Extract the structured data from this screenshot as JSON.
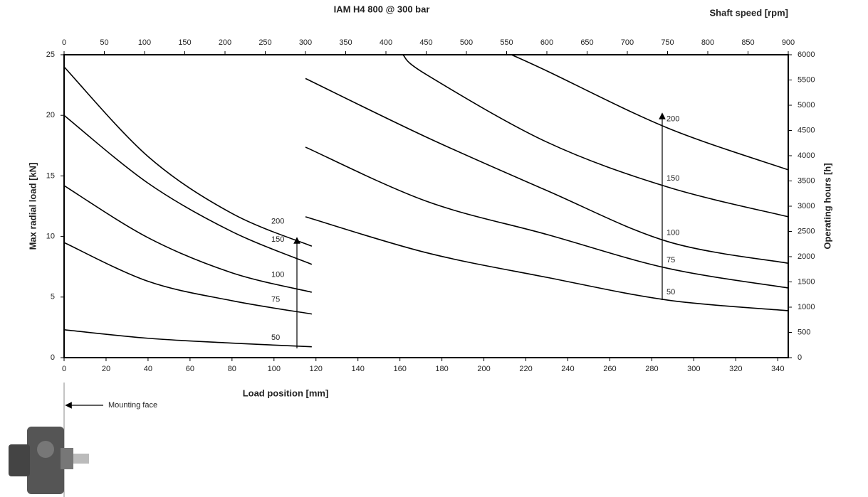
{
  "chart_data": [
    {
      "type": "line",
      "title": "IAM H4 800 @ 300 bar",
      "xlabel": "Load position [mm]",
      "ylabel": "Max radial load [kN]",
      "xlim": [
        0,
        345
      ],
      "xticks": [
        0,
        20,
        40,
        60,
        80,
        100,
        120,
        140,
        160,
        180,
        200,
        220,
        240,
        260,
        280,
        300,
        320,
        340
      ],
      "ylim": [
        0,
        25
      ],
      "yticks": [
        0,
        5,
        10,
        15,
        20,
        25
      ],
      "annotation": "Mounting face",
      "series": [
        {
          "name": "200",
          "color": "#000000",
          "x": [
            0,
            40,
            80,
            118
          ],
          "values": [
            24,
            16.6,
            11.9,
            9.2
          ]
        },
        {
          "name": "150",
          "color": "#000000",
          "x": [
            0,
            40,
            80,
            118
          ],
          "values": [
            20,
            14.4,
            10.4,
            7.7
          ]
        },
        {
          "name": "100",
          "color": "#000000",
          "x": [
            0,
            40,
            80,
            118
          ],
          "values": [
            14.2,
            9.9,
            7.0,
            5.4
          ]
        },
        {
          "name": "75",
          "color": "#000000",
          "x": [
            0,
            40,
            80,
            118
          ],
          "values": [
            9.5,
            6.3,
            4.7,
            3.6
          ]
        },
        {
          "name": "50",
          "color": "#000000",
          "x": [
            0,
            40,
            80,
            118
          ],
          "values": [
            2.3,
            1.6,
            1.2,
            0.9
          ]
        }
      ]
    },
    {
      "type": "line",
      "xlabel": "Shaft speed [rpm]",
      "ylabel": "Operating hours [h]",
      "xlim": [
        0,
        900
      ],
      "xticks": [
        0,
        50,
        100,
        150,
        200,
        250,
        300,
        350,
        400,
        450,
        500,
        550,
        600,
        650,
        700,
        750,
        800,
        850,
        900
      ],
      "ylim": [
        0,
        6000
      ],
      "yticks": [
        0,
        500,
        1000,
        1500,
        2000,
        2500,
        3000,
        3500,
        4000,
        4500,
        5000,
        5500,
        6000
      ],
      "series": [
        {
          "name": "200",
          "color": "#000000",
          "x": [
            556,
            600,
            750,
            900
          ],
          "values": [
            6000,
            5680,
            4550,
            3720
          ]
        },
        {
          "name": "150",
          "color": "#000000",
          "x": [
            421,
            450,
            600,
            750,
            900
          ],
          "values": [
            6000,
            5610,
            4270,
            3380,
            2790
          ]
        },
        {
          "name": "100",
          "color": "#000000",
          "x": [
            300,
            450,
            600,
            750,
            900
          ],
          "values": [
            5530,
            4370,
            3310,
            2300,
            1870
          ]
        },
        {
          "name": "75",
          "color": "#000000",
          "x": [
            300,
            450,
            600,
            750,
            900
          ],
          "values": [
            4170,
            3100,
            2440,
            1770,
            1380
          ]
        },
        {
          "name": "50",
          "color": "#000000",
          "x": [
            300,
            450,
            600,
            750,
            900
          ],
          "values": [
            2790,
            2080,
            1590,
            1140,
            930
          ]
        }
      ]
    }
  ]
}
